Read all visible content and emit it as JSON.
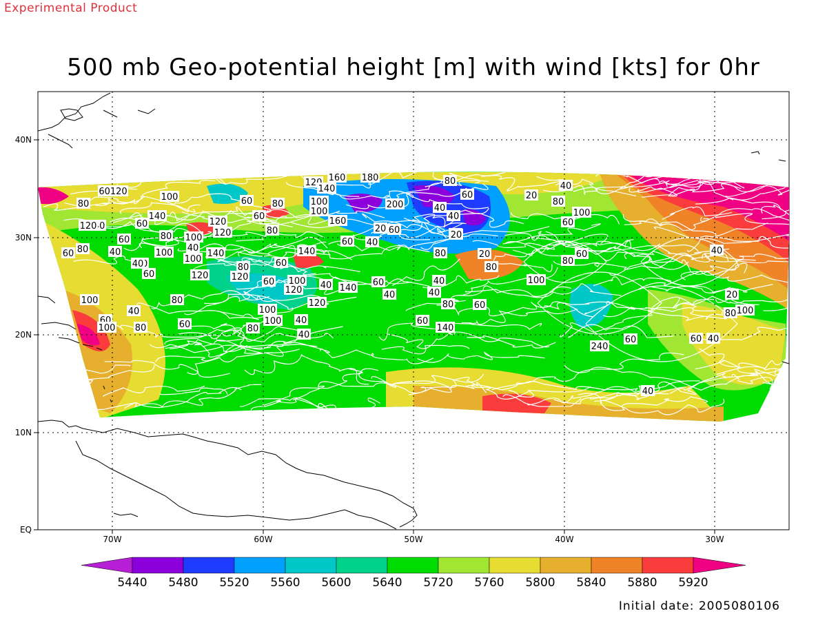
{
  "watermark": "Experimental Product",
  "title": "500 mb Geo-potential height [m] with wind [kts] for 0hr",
  "initial_date": "Initial date: 2005080106",
  "axes": {
    "lat_ticks": [
      "40N",
      "30N",
      "20N",
      "10N",
      "EQ"
    ],
    "lon_ticks": [
      "70W",
      "60W",
      "50W",
      "40W",
      "30W"
    ]
  },
  "colorbar": {
    "labels": [
      "5440",
      "5480",
      "5520",
      "5560",
      "5600",
      "5640",
      "5720",
      "5760",
      "5800",
      "5840",
      "5880",
      "5920"
    ],
    "colors": [
      "#b61fd6",
      "#8c00dc",
      "#1e3cff",
      "#00a0ff",
      "#00c8c8",
      "#00d28c",
      "#00dc00",
      "#a0e632",
      "#e6dc32",
      "#e6af2d",
      "#f08228",
      "#fa3c3c",
      "#f00082"
    ]
  },
  "field_colors": {
    "green": "#00dc00",
    "light_green": "#a0e632",
    "yellow": "#e6dc32",
    "gold": "#e6af2d",
    "orange": "#f08228",
    "red": "#fa3c3c",
    "magenta": "#f00082",
    "cyan": "#00c8c8",
    "blue": "#00a0ff",
    "dark_blue": "#1e3cff",
    "purple": "#8c00dc",
    "teal": "#00d28c"
  },
  "wind_labels": [
    {
      "t": "120"
    },
    {
      "t": "160"
    },
    {
      "t": "180"
    },
    {
      "t": "140"
    },
    {
      "t": "80"
    },
    {
      "t": "60"
    },
    {
      "t": "40"
    },
    {
      "t": "20"
    },
    {
      "t": "60120"
    },
    {
      "t": "100"
    },
    {
      "t": "80"
    },
    {
      "t": "60"
    },
    {
      "t": "80"
    },
    {
      "t": "100"
    },
    {
      "t": "200"
    },
    {
      "t": "80"
    },
    {
      "t": "140"
    },
    {
      "t": "120"
    },
    {
      "t": "140"
    },
    {
      "t": "60"
    },
    {
      "t": "40"
    },
    {
      "t": "120"
    },
    {
      "t": "100"
    },
    {
      "t": "40"
    },
    {
      "t": "60"
    },
    {
      "t": "160"
    },
    {
      "t": "20"
    },
    {
      "t": "60"
    },
    {
      "t": "20"
    },
    {
      "t": "80"
    },
    {
      "t": "100"
    },
    {
      "t": "60"
    },
    {
      "t": "40"
    },
    {
      "t": "80"
    },
    {
      "t": "60"
    },
    {
      "t": "60"
    },
    {
      "t": "80"
    },
    {
      "t": "100"
    },
    {
      "t": "120"
    },
    {
      "t": "100"
    },
    {
      "t": "40"
    },
    {
      "t": "140"
    },
    {
      "t": "60"
    },
    {
      "t": "80"
    },
    {
      "t": "40"
    },
    {
      "t": "140"
    },
    {
      "t": "100"
    },
    {
      "t": "20"
    },
    {
      "t": "80"
    },
    {
      "t": "40"
    },
    {
      "t": "60"
    },
    {
      "t": "80"
    },
    {
      "t": "20"
    },
    {
      "t": "100"
    },
    {
      "t": "60"
    },
    {
      "t": "80"
    },
    {
      "t": "120"
    },
    {
      "t": "60"
    },
    {
      "t": "40"
    },
    {
      "t": "120"
    },
    {
      "t": "140"
    },
    {
      "t": "120"
    },
    {
      "t": "80"
    },
    {
      "t": "60"
    },
    {
      "t": "60"
    },
    {
      "t": "40"
    },
    {
      "t": "100"
    },
    {
      "t": "240"
    },
    {
      "t": "60"
    },
    {
      "t": "40"
    },
    {
      "t": "80"
    },
    {
      "t": "40"
    },
    {
      "t": "20"
    },
    {
      "t": "60"
    },
    {
      "t": "40"
    },
    {
      "t": "100"
    },
    {
      "t": "80"
    },
    {
      "t": "100"
    },
    {
      "t": "60"
    },
    {
      "t": "40"
    },
    {
      "t": "100"
    },
    {
      "t": "120"
    },
    {
      "t": "60"
    },
    {
      "t": "140"
    },
    {
      "t": "40"
    },
    {
      "t": "80"
    },
    {
      "t": "40"
    },
    {
      "t": "60"
    },
    {
      "t": "100"
    },
    {
      "t": "80"
    },
    {
      "t": "100"
    },
    {
      "t": "80"
    },
    {
      "t": "60"
    },
    {
      "t": "40"
    },
    {
      "t": "40"
    }
  ]
}
